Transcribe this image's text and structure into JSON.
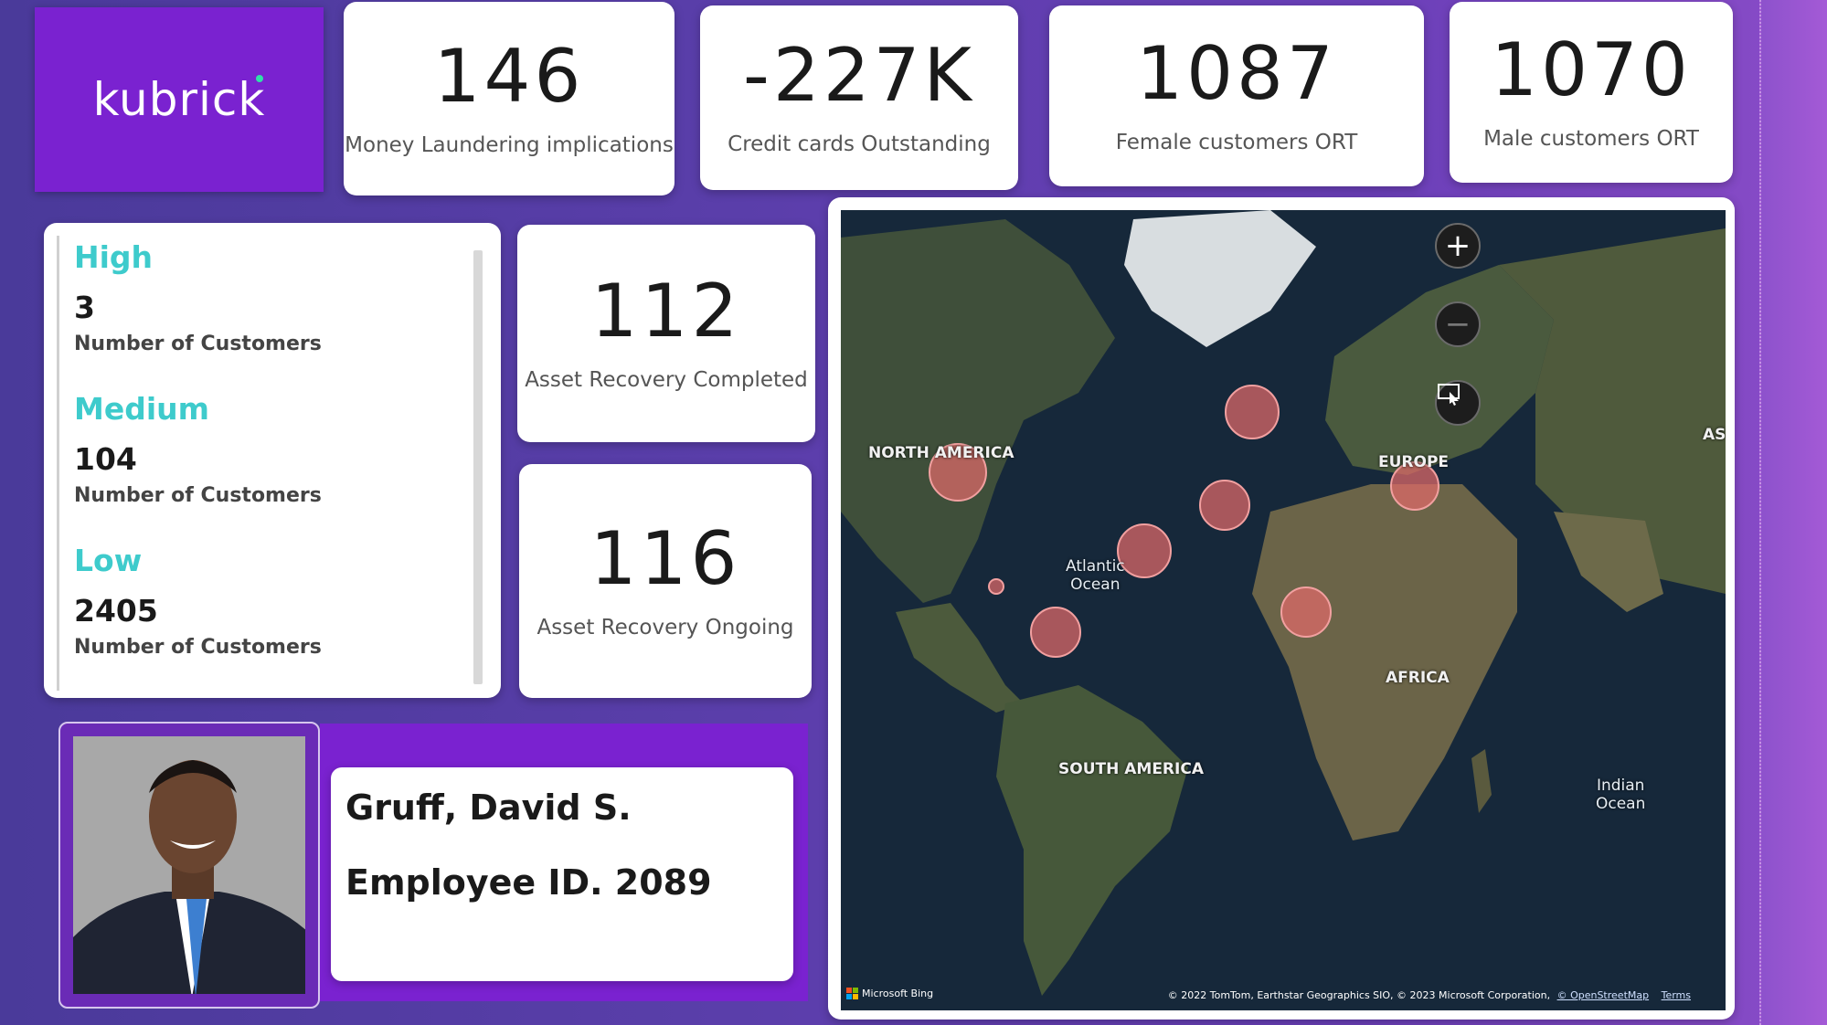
{
  "logo": {
    "text": "kubrick"
  },
  "kpis": [
    {
      "value": "146",
      "label": "Money Laundering implications"
    },
    {
      "value": "-227K",
      "label": "Credit cards Outstanding"
    },
    {
      "value": "1087",
      "label": "Female customers ORT"
    },
    {
      "value": "1070",
      "label": "Male customers ORT"
    }
  ],
  "risk_levels": [
    {
      "level": "High",
      "count": "3",
      "label": "Number of Customers"
    },
    {
      "level": "Medium",
      "count": "104",
      "label": "Number of Customers"
    },
    {
      "level": "Low",
      "count": "2405",
      "label": "Number of Customers"
    }
  ],
  "asset_recovery": [
    {
      "value": "112",
      "label": "Asset Recovery Completed"
    },
    {
      "value": "116",
      "label": "Asset Recovery Ongoing"
    }
  ],
  "employee": {
    "name": "Gruff, David S.",
    "id_text": "Employee ID. 2089"
  },
  "map": {
    "labels": {
      "north_america": "NORTH AMERICA",
      "europe": "EUROPE",
      "africa": "AFRICA",
      "south_america": "SOUTH AMERICA",
      "asia": "AS"
    },
    "oceans": {
      "atlantic_1": "Atlantic",
      "atlantic_2": "Ocean",
      "indian_1": "Indian",
      "indian_2": "Ocean"
    },
    "controls": {
      "zoom_in": "+",
      "zoom_out": "−"
    },
    "attribution_text": "© 2022 TomTom, Earthstar Geographics SIO, © 2023 Microsoft Corporation,",
    "osm_link": "© OpenStreetMap",
    "terms_link": "Terms",
    "provider": "Microsoft Bing",
    "bubble_color": "#e06a6a"
  }
}
